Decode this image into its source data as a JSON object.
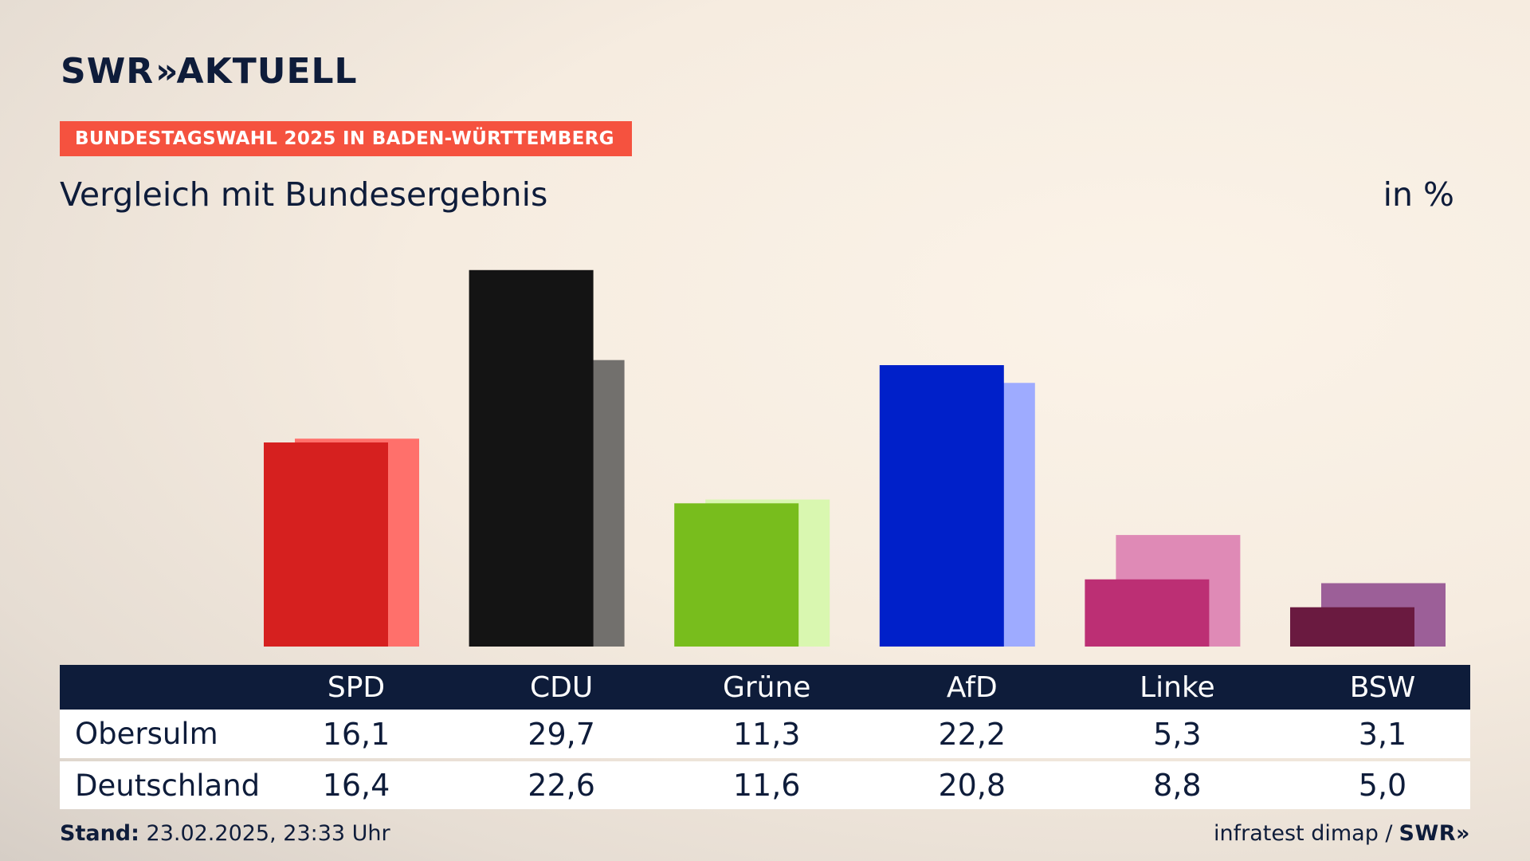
{
  "brand": {
    "name": "SWR",
    "chevrons": "»",
    "product": "AKTUELL"
  },
  "badge": "BUNDESTAGSWAHL 2025 IN BADEN-WÜRTTEMBERG",
  "subtitle": "Vergleich mit Bundesergebnis",
  "unit": "in %",
  "colors": {
    "text": "#0e1c3a",
    "badge": "#f5523f",
    "table_header": "#0e1c3a"
  },
  "chart_data": {
    "type": "bar",
    "categories": [
      "SPD",
      "CDU",
      "Grüne",
      "AfD",
      "Linke",
      "BSW"
    ],
    "series": [
      {
        "name": "Obersulm",
        "values": [
          16.1,
          29.7,
          11.3,
          22.2,
          5.3,
          3.1
        ],
        "colors": [
          "#d6201f",
          "#141414",
          "#78bd1d",
          "#0020c9",
          "#bc2f74",
          "#6a1a40"
        ]
      },
      {
        "name": "Deutschland",
        "values": [
          16.4,
          22.6,
          11.6,
          20.8,
          8.8,
          5.0
        ],
        "colors": [
          "#ff706b",
          "#72706d",
          "#d9f7b0",
          "#9eabff",
          "#df8ab6",
          "#9c5f98"
        ]
      }
    ],
    "ylim": [
      0,
      30
    ]
  },
  "table": {
    "headers": [
      "SPD",
      "CDU",
      "Grüne",
      "AfD",
      "Linke",
      "BSW"
    ],
    "rows": [
      {
        "label": "Obersulm",
        "values": [
          "16,1",
          "29,7",
          "11,3",
          "22,2",
          "5,3",
          "3,1"
        ]
      },
      {
        "label": "Deutschland",
        "values": [
          "16,4",
          "22,6",
          "11,6",
          "20,8",
          "8,8",
          "5,0"
        ]
      }
    ]
  },
  "footer": {
    "stand_label": "Stand:",
    "stand_value": "23.02.2025, 23:33 Uhr",
    "source": "infratest dimap /",
    "source_logo": "SWR»"
  }
}
